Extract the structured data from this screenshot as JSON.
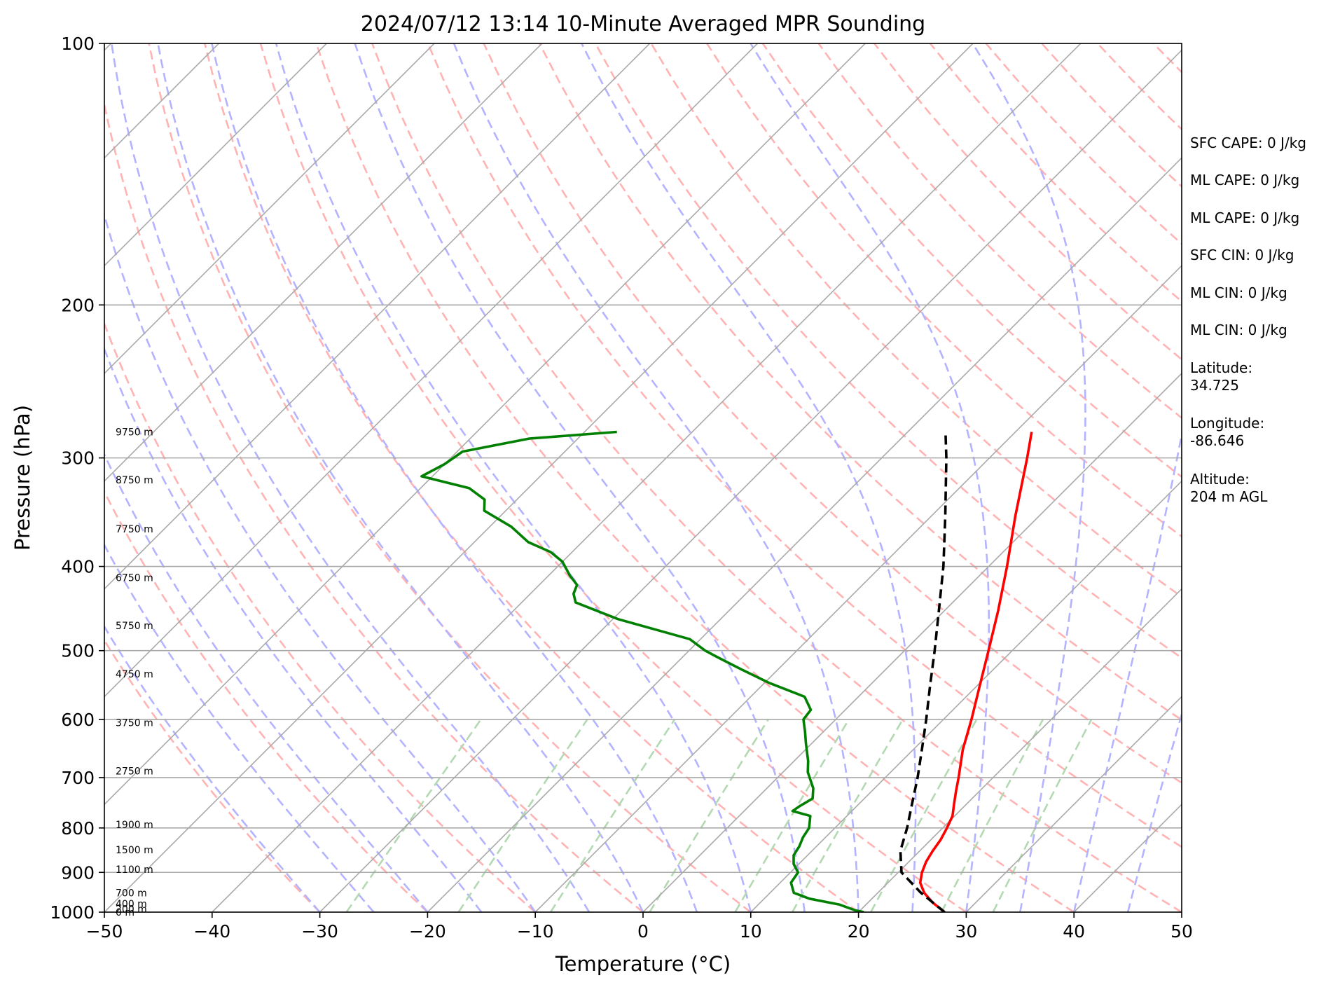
{
  "chart_data": {
    "type": "skew-t",
    "title": "2024/07/12 13:14 10-Minute Averaged MPR Sounding",
    "xlabel": "Temperature (°C)",
    "ylabel": "Pressure (hPa)",
    "xlim": [
      -50,
      50
    ],
    "ylim": [
      1000,
      100
    ],
    "y_scale": "log",
    "grid": true,
    "x_ticks": [
      -50,
      -40,
      -30,
      -20,
      -10,
      0,
      10,
      20,
      30,
      40,
      50
    ],
    "x_tick_labels": [
      "−50",
      "−40",
      "−30",
      "−20",
      "−10",
      "0",
      "10",
      "20",
      "30",
      "40",
      "50"
    ],
    "y_ticks": [
      1000,
      900,
      800,
      700,
      600,
      500,
      400,
      300,
      200,
      100
    ],
    "y_tick_labels": [
      "1000",
      "900",
      "800",
      "700",
      "600",
      "500",
      "400",
      "300",
      "200",
      "100"
    ],
    "colors": {
      "temperature": "#ff0000",
      "dewpoint": "#008000",
      "parcel": "#000000",
      "isotherm": "#a9a9a9",
      "dry_adiabat": "#ffb3b3",
      "moist_adiabat": "#b3b3ff",
      "mixing_ratio": "#b3d9b3",
      "pressure_grid": "#a9a9a9"
    },
    "series": [
      {
        "key": "temperature",
        "points": [
          [
            1000,
            28.0
          ],
          [
            975,
            26.0
          ],
          [
            950,
            24.3
          ],
          [
            925,
            23.0
          ],
          [
            900,
            22.2
          ],
          [
            875,
            21.6
          ],
          [
            850,
            21.2
          ],
          [
            825,
            20.9
          ],
          [
            800,
            20.4
          ],
          [
            775,
            19.8
          ],
          [
            750,
            18.8
          ],
          [
            725,
            17.8
          ],
          [
            700,
            16.8
          ],
          [
            650,
            14.6
          ],
          [
            600,
            12.6
          ],
          [
            550,
            10.3
          ],
          [
            500,
            7.8
          ],
          [
            450,
            5.0
          ],
          [
            400,
            1.7
          ],
          [
            350,
            -2.2
          ],
          [
            300,
            -6.5
          ],
          [
            280,
            -8.5
          ]
        ]
      },
      {
        "key": "dewpoint",
        "points": [
          [
            1000,
            20.5
          ],
          [
            995,
            19.5
          ],
          [
            980,
            17.5
          ],
          [
            965,
            14.2
          ],
          [
            950,
            12.2
          ],
          [
            925,
            11.0
          ],
          [
            900,
            10.7
          ],
          [
            880,
            9.5
          ],
          [
            860,
            8.7
          ],
          [
            840,
            8.4
          ],
          [
            820,
            7.9
          ],
          [
            800,
            7.6
          ],
          [
            775,
            6.6
          ],
          [
            765,
            4.5
          ],
          [
            755,
            4.7
          ],
          [
            740,
            5.2
          ],
          [
            720,
            4.3
          ],
          [
            690,
            2.3
          ],
          [
            670,
            1.3
          ],
          [
            640,
            -0.5
          ],
          [
            620,
            -1.7
          ],
          [
            600,
            -3.0
          ],
          [
            585,
            -3.2
          ],
          [
            565,
            -5.0
          ],
          [
            545,
            -9.5
          ],
          [
            525,
            -13.5
          ],
          [
            510,
            -16.5
          ],
          [
            500,
            -18.5
          ],
          [
            485,
            -21.0
          ],
          [
            460,
            -29.5
          ],
          [
            440,
            -35.0
          ],
          [
            430,
            -36.0
          ],
          [
            420,
            -36.5
          ],
          [
            410,
            -38.0
          ],
          [
            395,
            -40.0
          ],
          [
            385,
            -42.0
          ],
          [
            375,
            -45.0
          ],
          [
            360,
            -48.0
          ],
          [
            345,
            -52.0
          ],
          [
            335,
            -53.0
          ],
          [
            325,
            -55.5
          ],
          [
            315,
            -61.0
          ],
          [
            305,
            -60.0
          ],
          [
            295,
            -59.5
          ],
          [
            285,
            -54.5
          ],
          [
            280,
            -47.0
          ]
        ]
      },
      {
        "key": "parcel",
        "points": [
          [
            1000,
            28.0
          ],
          [
            950,
            24.0
          ],
          [
            900,
            20.3
          ],
          [
            850,
            18.2
          ],
          [
            800,
            16.7
          ],
          [
            750,
            14.9
          ],
          [
            700,
            13.0
          ],
          [
            650,
            10.8
          ],
          [
            600,
            8.4
          ],
          [
            550,
            5.7
          ],
          [
            500,
            2.8
          ],
          [
            450,
            -0.5
          ],
          [
            400,
            -4.2
          ],
          [
            350,
            -8.7
          ],
          [
            300,
            -14.0
          ],
          [
            280,
            -16.5
          ]
        ]
      }
    ],
    "height_labels": [
      {
        "p": 280,
        "label": "9750 m"
      },
      {
        "p": 318,
        "label": "8750 m"
      },
      {
        "p": 362,
        "label": "7750 m"
      },
      {
        "p": 412,
        "label": "6750 m"
      },
      {
        "p": 468,
        "label": "5750 m"
      },
      {
        "p": 532,
        "label": "4750 m"
      },
      {
        "p": 605,
        "label": "3750 m"
      },
      {
        "p": 688,
        "label": "2750 m"
      },
      {
        "p": 793,
        "label": "1900 m"
      },
      {
        "p": 848,
        "label": "1500 m"
      },
      {
        "p": 893,
        "label": "1100 m"
      },
      {
        "p": 950,
        "label": "700 m"
      },
      {
        "p": 978,
        "label": "400 m"
      },
      {
        "p": 992,
        "label": "200 m"
      },
      {
        "p": 1000,
        "label": "0 m"
      }
    ]
  },
  "info_panel": {
    "sfc_cape": "SFC CAPE: 0 J/kg",
    "ml_cape_1": "ML CAPE: 0 J/kg",
    "ml_cape_2": "ML CAPE: 0 J/kg",
    "sfc_cin": "SFC CIN: 0 J/kg",
    "ml_cin_1": "ML CIN: 0 J/kg",
    "ml_cin_2": "ML CIN: 0 J/kg",
    "latitude_label": "Latitude:",
    "latitude_value": "34.725",
    "longitude_label": "Longitude:",
    "longitude_value": "-86.646",
    "altitude_label": "Altitude:",
    "altitude_value": "204 m AGL"
  }
}
